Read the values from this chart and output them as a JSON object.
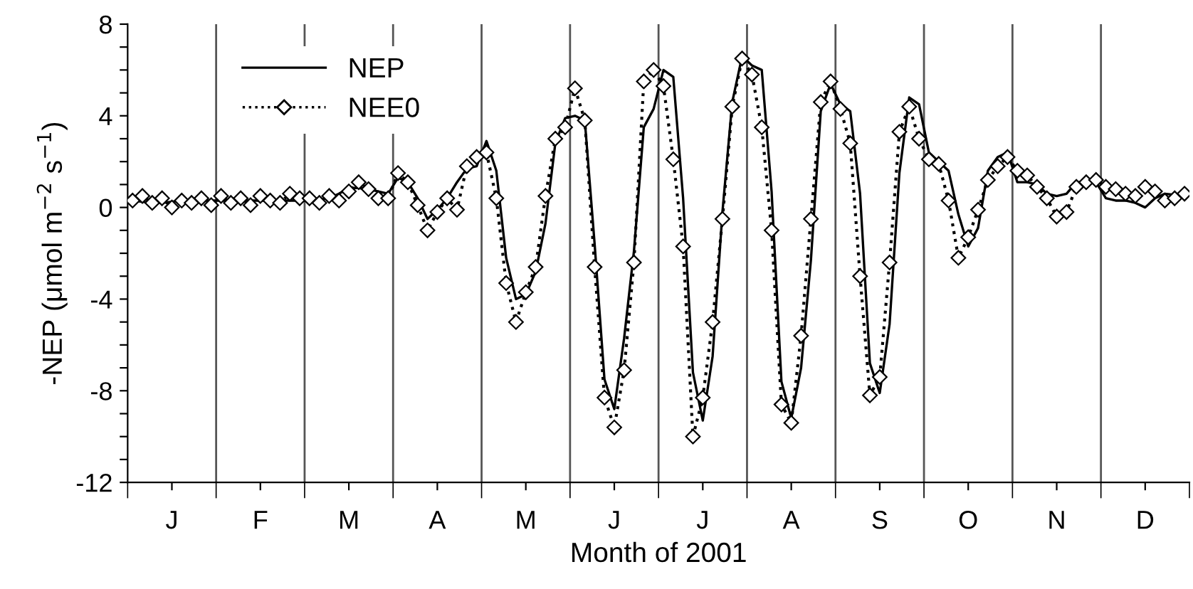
{
  "chart_data": {
    "type": "line",
    "xlabel": "Month of 2001",
    "ylabel": "-NEP (μmol m$^{−2}$ s$^{−1}$)",
    "categories": [
      null,
      null,
      null,
      null,
      "J",
      null,
      null,
      null,
      null,
      null,
      null,
      null,
      null,
      "F",
      null,
      null,
      null,
      null,
      null,
      null,
      null,
      null,
      "M",
      null,
      null,
      null,
      null,
      null,
      null,
      null,
      null,
      "A",
      null,
      null,
      null,
      null,
      null,
      null,
      null,
      null,
      "M",
      null,
      null,
      null,
      null,
      null,
      null,
      null,
      null,
      "J",
      null,
      null,
      null,
      null,
      null,
      null,
      null,
      null,
      "J",
      null,
      null,
      null,
      null,
      null,
      null,
      null,
      null,
      "A",
      null,
      null,
      null,
      null,
      null,
      null,
      null,
      null,
      "S",
      null,
      null,
      null,
      null,
      null,
      null,
      null,
      null,
      "O",
      null,
      null,
      null,
      null,
      null,
      null,
      null,
      null,
      "N",
      null,
      null,
      null,
      null,
      null,
      null,
      null,
      null,
      "D",
      null,
      null,
      null,
      null
    ],
    "ylim": [
      -12,
      8
    ],
    "yticks": [
      -12,
      {
        "value": -11,
        "label": null
      },
      {
        "value": -10,
        "label": null
      },
      {
        "value": -9,
        "label": null
      },
      -8,
      {
        "value": -7,
        "label": null
      },
      {
        "value": -6,
        "label": null
      },
      {
        "value": -5,
        "label": null
      },
      -4,
      {
        "value": -3,
        "label": null
      },
      {
        "value": -2,
        "label": null
      },
      {
        "value": -1,
        "label": null
      },
      0,
      {
        "value": 1,
        "label": null
      },
      {
        "value": 2,
        "label": null
      },
      {
        "value": 3,
        "label": null
      },
      4,
      {
        "value": 5,
        "label": null
      },
      {
        "value": 6,
        "label": null
      },
      {
        "value": 7,
        "label": null
      },
      8
    ],
    "legend": "top left",
    "grid": "x",
    "series": [
      {
        "name": "NEP",
        "color": "#000000",
        "line_style": "solid",
        "marker": "none",
        "values": [
          0.3,
          0.25,
          0.2,
          0.2,
          0.25,
          0.3,
          0.3,
          0.3,
          0.3,
          0.3,
          0.3,
          0.3,
          0.3,
          0.3,
          0.3,
          0.3,
          0.3,
          0.3,
          0.3,
          0.35,
          0.4,
          0.6,
          0.85,
          0.85,
          0.8,
          0.7,
          0.6,
          1.3,
          1.1,
          0.4,
          -0.5,
          -0.1,
          0.4,
          1.1,
          1.7,
          1.8,
          2.9,
          1.6,
          -2.2,
          -4.0,
          -3.8,
          -2.8,
          -0.7,
          2.8,
          3.9,
          4.0,
          3.8,
          -1.6,
          -7.5,
          -8.8,
          -5.7,
          -1.9,
          3.5,
          4.3,
          6.0,
          5.7,
          0.4,
          -7.2,
          -9.3,
          -6.5,
          -0.2,
          4.6,
          6.6,
          6.2,
          6.0,
          0.7,
          -7.6,
          -9.2,
          -7.0,
          -2.3,
          4.2,
          5.4,
          4.5,
          4.2,
          0.6,
          -6.8,
          -8.1,
          -5.1,
          1.5,
          4.8,
          4.5,
          2.4,
          2.0,
          1.6,
          -0.3,
          -1.7,
          -0.9,
          1.6,
          2.2,
          2.4,
          1.1,
          1.1,
          1.0,
          0.6,
          0.5,
          0.6,
          1.1,
          1.1,
          1.1,
          0.4,
          0.3,
          0.3,
          0.2,
          0.0,
          0.4,
          0.6,
          0.55,
          0.5
        ]
      },
      {
        "name": "NEE0",
        "color": "#000000",
        "line_style": "dotted",
        "marker": "diamond",
        "values": [
          0.3,
          0.5,
          0.2,
          0.4,
          0.0,
          0.3,
          0.2,
          0.4,
          0.1,
          0.5,
          0.2,
          0.4,
          0.1,
          0.5,
          0.3,
          0.2,
          0.6,
          0.4,
          0.4,
          0.2,
          0.5,
          0.3,
          0.7,
          1.1,
          0.8,
          0.4,
          0.4,
          1.5,
          1.1,
          0.1,
          -1.0,
          -0.2,
          0.4,
          -0.1,
          1.8,
          2.2,
          2.4,
          0.4,
          -3.3,
          -5.0,
          -3.7,
          -2.6,
          0.5,
          3.0,
          3.5,
          5.2,
          3.8,
          -2.6,
          -8.3,
          -9.6,
          -7.1,
          -2.4,
          5.5,
          6.0,
          5.3,
          2.1,
          -1.7,
          -10.0,
          -8.3,
          -5.0,
          -0.5,
          4.4,
          6.5,
          5.8,
          3.5,
          -1.0,
          -8.6,
          -9.4,
          -5.6,
          -0.5,
          4.6,
          5.5,
          4.3,
          2.8,
          -3.0,
          -8.2,
          -7.4,
          -2.4,
          3.3,
          4.4,
          3.0,
          2.1,
          1.9,
          0.3,
          -2.2,
          -1.3,
          -0.1,
          1.2,
          1.8,
          2.2,
          1.6,
          1.4,
          0.9,
          0.4,
          -0.4,
          -0.2,
          0.9,
          1.1,
          1.2,
          0.9,
          0.8,
          0.6,
          0.5,
          0.9,
          0.7,
          0.3,
          0.4,
          0.6
        ]
      }
    ]
  }
}
